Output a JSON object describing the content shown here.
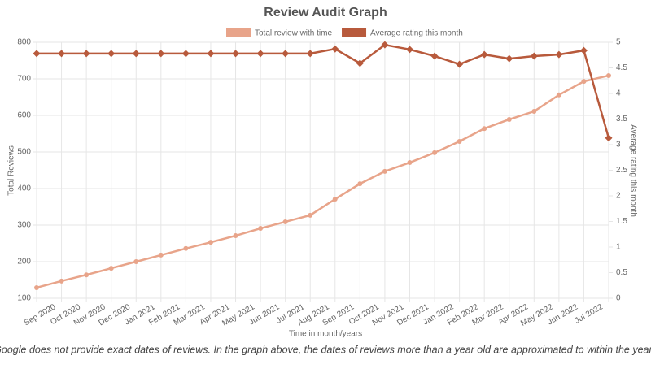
{
  "chart_data": {
    "type": "line",
    "title": "Review Audit Graph",
    "x_label": "Time in month/years",
    "y_label": "Total Reviews",
    "y2_label": "Average rating this month",
    "note": "*Google does not provide exact dates of reviews. In the graph above, the dates of reviews more than a year old are approximated to within the year.",
    "categories": [
      null,
      "Sep 2020",
      "Oct 2020",
      "Nov 2020",
      "Dec 2020",
      "Jan 2021",
      "Feb 2021",
      "Mar 2021",
      "Apr 2021",
      "May 2021",
      "Jun 2021",
      "Jul 2021",
      "Aug 2021",
      "Sep 2021",
      "Oct 2021",
      "Nov 2021",
      "Dec 2021",
      "Jan 2022",
      "Feb 2022",
      "Mar 2022",
      "Apr 2022",
      "May 2022",
      "Jun 2022",
      "Jul 2022"
    ],
    "series": [
      {
        "name": "Total review with time",
        "color": "#e8a48a",
        "axis": "y",
        "values": [
          129,
          147,
          164,
          182,
          200,
          218,
          236,
          253,
          271,
          291,
          309,
          327,
          371,
          413,
          447,
          471,
          498,
          529,
          564,
          589,
          611,
          656,
          693,
          709
        ]
      },
      {
        "name": "Average rating this month",
        "color": "#b85a3c",
        "axis": "y2",
        "values": [
          4.78,
          4.78,
          4.78,
          4.78,
          4.78,
          4.78,
          4.78,
          4.78,
          4.78,
          4.78,
          4.78,
          4.78,
          4.87,
          4.59,
          4.95,
          4.86,
          4.73,
          4.57,
          4.76,
          4.68,
          4.73,
          4.76,
          4.84,
          3.13
        ]
      }
    ],
    "ylim": [
      100,
      800
    ],
    "yticks": [
      100,
      200,
      300,
      400,
      500,
      600,
      700,
      800
    ],
    "y2lim": [
      0,
      5
    ],
    "y2ticks": [
      0,
      0.5,
      1,
      1.5,
      2,
      2.5,
      3,
      3.5,
      4,
      4.5,
      5
    ],
    "grid": true,
    "legend": "top"
  }
}
